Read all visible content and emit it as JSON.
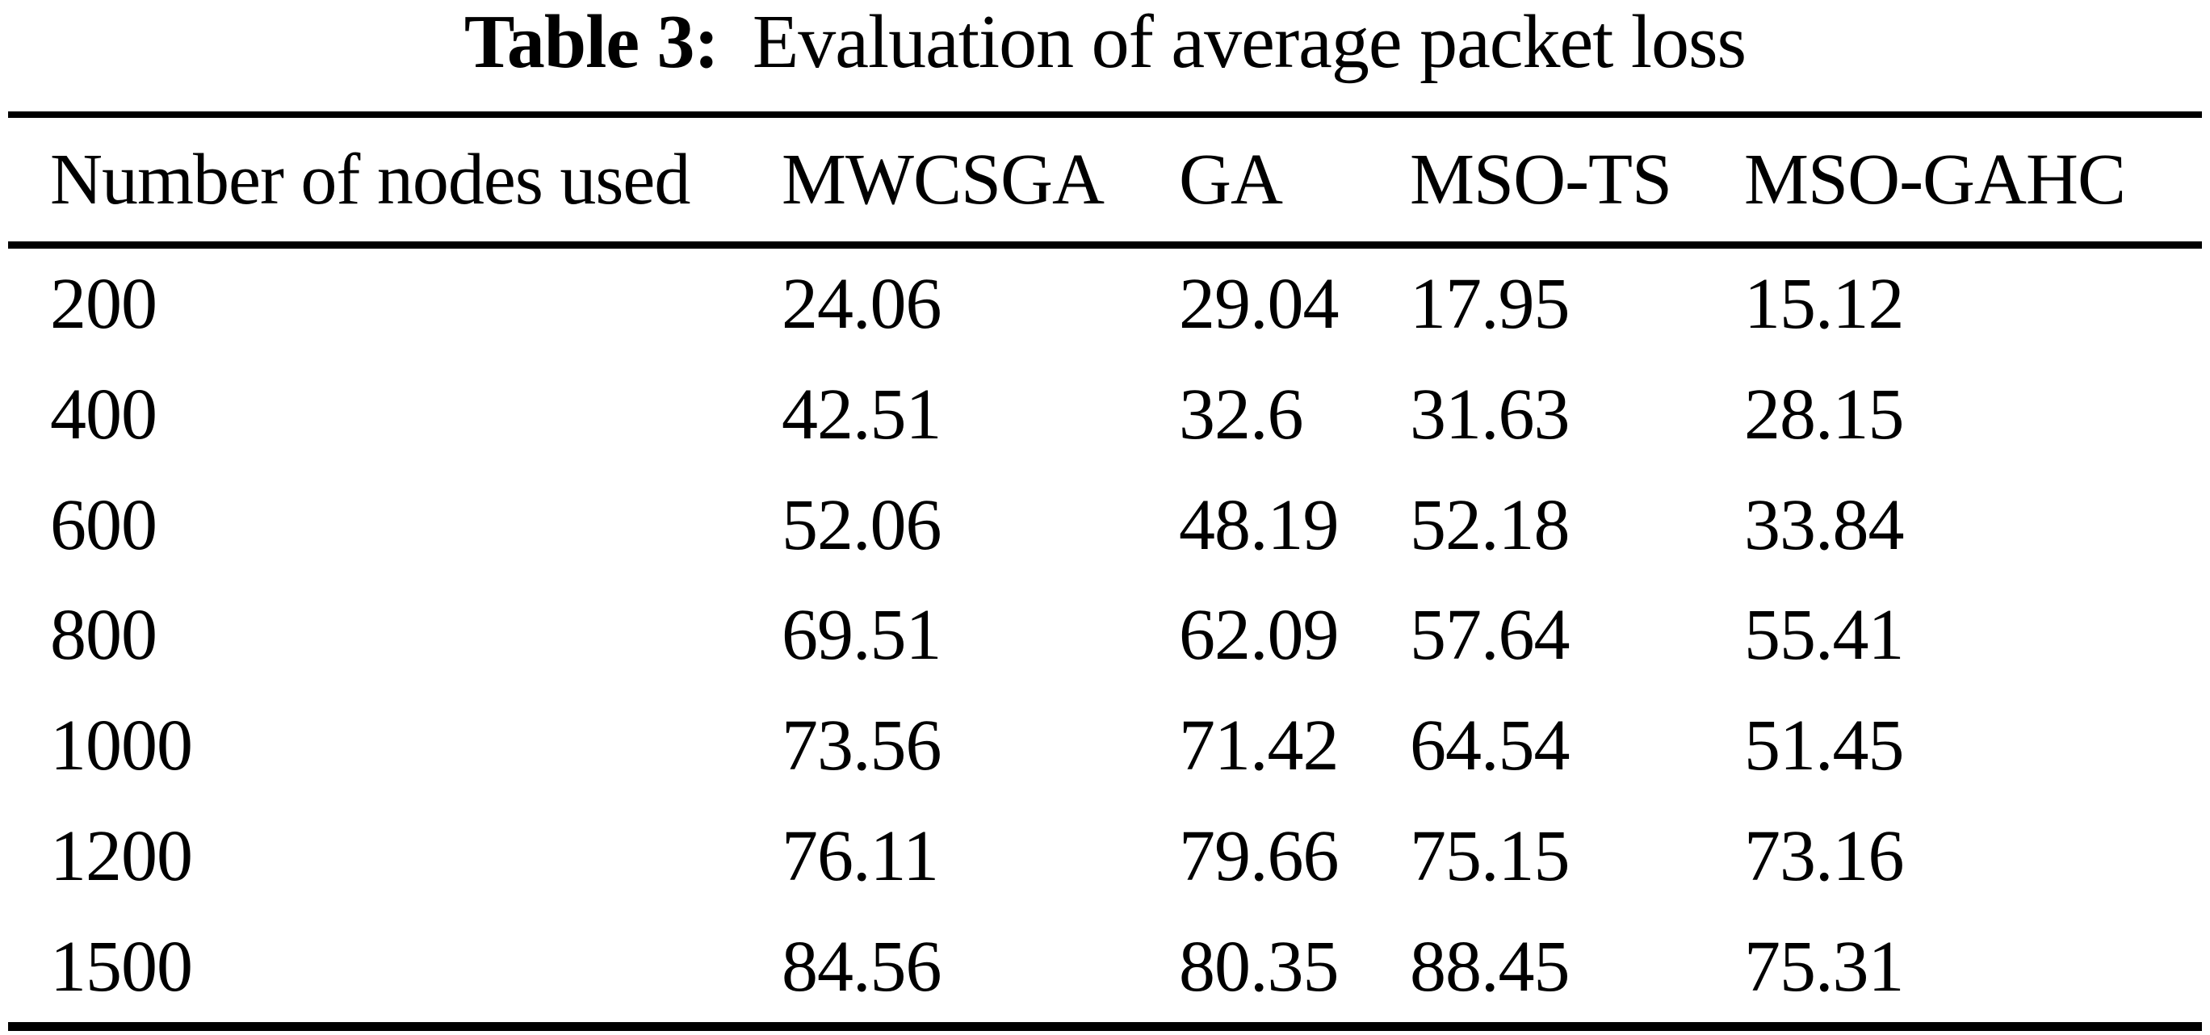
{
  "title": {
    "label": "Table 3:",
    "text": "Evaluation of average packet loss"
  },
  "table": {
    "headers": [
      "Number of nodes used",
      "MWCSGA",
      "GA",
      "MSO-TS",
      "MSO-GAHC"
    ],
    "rows": [
      [
        "200",
        "24.06",
        "29.04",
        "17.95",
        "15.12"
      ],
      [
        "400",
        "42.51",
        "32.6",
        "31.63",
        "28.15"
      ],
      [
        "600",
        "52.06",
        "48.19",
        "52.18",
        "33.84"
      ],
      [
        "800",
        "69.51",
        "62.09",
        "57.64",
        "55.41"
      ],
      [
        "1000",
        "73.56",
        "71.42",
        "64.54",
        "51.45"
      ],
      [
        "1200",
        "76.11",
        "79.66",
        "75.15",
        "73.16"
      ],
      [
        "1500",
        "84.56",
        "80.35",
        "88.45",
        "75.31"
      ]
    ]
  },
  "chart_data": {
    "type": "table",
    "title": "Table 3: Evaluation of average packet loss",
    "xlabel": "Number of nodes used",
    "categories": [
      200,
      400,
      600,
      800,
      1000,
      1200,
      1500
    ],
    "series": [
      {
        "name": "MWCSGA",
        "values": [
          24.06,
          42.51,
          52.06,
          69.51,
          73.56,
          76.11,
          84.56
        ]
      },
      {
        "name": "GA",
        "values": [
          29.04,
          32.6,
          48.19,
          62.09,
          71.42,
          79.66,
          80.35
        ]
      },
      {
        "name": "MSO-TS",
        "values": [
          17.95,
          31.63,
          52.18,
          57.64,
          64.54,
          75.15,
          88.45
        ]
      },
      {
        "name": "MSO-GAHC",
        "values": [
          15.12,
          28.15,
          33.84,
          55.41,
          51.45,
          73.16,
          75.31
        ]
      }
    ]
  },
  "colors": {
    "text": "#000000",
    "background": "#ffffff",
    "rule": "#000000"
  }
}
